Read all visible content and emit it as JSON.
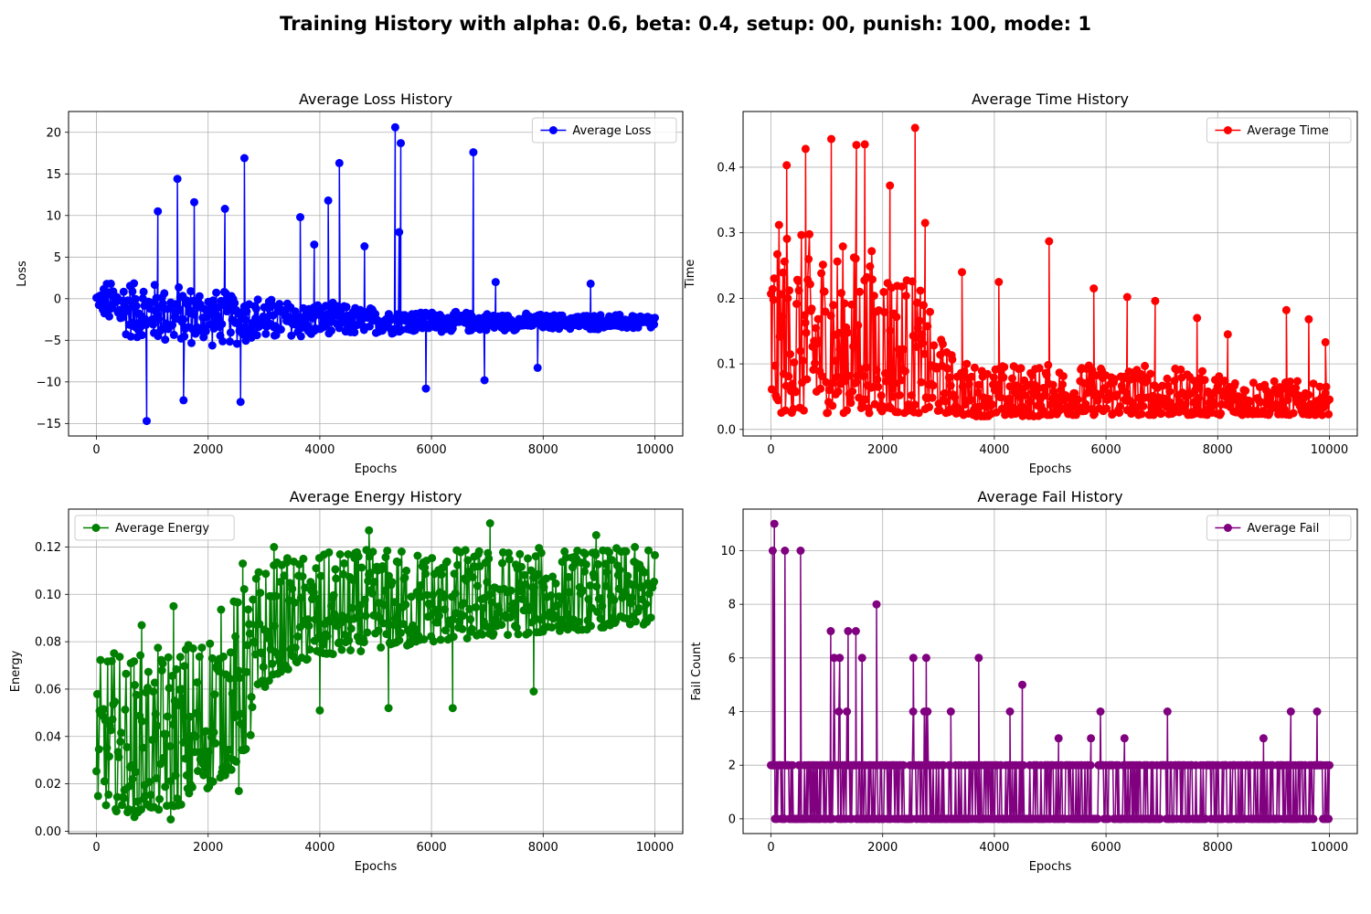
{
  "figure": {
    "suptitle": "Training History with alpha: 0.6, beta: 0.4, setup: 00, punish: 100, mode: 1"
  },
  "chart_data": [
    {
      "type": "line",
      "title": "Average Loss History",
      "xlabel": "Epochs",
      "ylabel": "Loss",
      "xlim": [
        -500,
        10500
      ],
      "ylim": [
        -16.5,
        22.5
      ],
      "xticks": [
        0,
        2000,
        4000,
        6000,
        8000,
        10000
      ],
      "yticks": [
        -15,
        -10,
        -5,
        0,
        5,
        10,
        15,
        20
      ],
      "grid": true,
      "legend_position": "upper-right",
      "series": [
        {
          "name": "Average Loss",
          "color": "#0000ff",
          "marker": "circle",
          "x": [
            0,
            200,
            400,
            600,
            800,
            1000,
            1200,
            1400,
            1600,
            1800,
            2000,
            2200,
            2400,
            2600,
            2800,
            3000,
            3200,
            3400,
            3600,
            3800,
            4000,
            4200,
            4400,
            4600,
            4800,
            5000,
            5200,
            5400,
            5600,
            5800,
            6000,
            6200,
            6400,
            6600,
            6800,
            7000,
            7200,
            7400,
            7600,
            7800,
            8000,
            8200,
            8400,
            8600,
            8800,
            9000,
            9200,
            9400,
            9600,
            9800,
            10000
          ],
          "mean": [
            0,
            -0.5,
            -1.0,
            -1.2,
            -1.5,
            -1.6,
            -1.8,
            -2.0,
            -2.0,
            -2.1,
            -2.2,
            -2.3,
            -2.3,
            -2.4,
            -2.5,
            -2.5,
            -2.5,
            -2.5,
            -2.6,
            -2.6,
            -2.6,
            -2.6,
            -2.6,
            -2.7,
            -2.7,
            -2.7,
            -2.7,
            -2.7,
            -2.7,
            -2.7,
            -2.8,
            -2.8,
            -2.8,
            -2.8,
            -2.8,
            -2.8,
            -2.8,
            -2.8,
            -2.8,
            -2.8,
            -2.8,
            -2.8,
            -2.8,
            -2.8,
            -2.8,
            -2.8,
            -2.8,
            -2.8,
            -2.8,
            -2.8,
            -2.8
          ],
          "spread": [
            0.5,
            3.0,
            4.0,
            4.0,
            4.0,
            4.0,
            4.0,
            4.0,
            4.0,
            4.0,
            3.8,
            3.6,
            3.5,
            3.4,
            3.2,
            3.0,
            2.8,
            2.6,
            2.5,
            2.4,
            2.3,
            2.2,
            2.1,
            2.0,
            1.9,
            1.8,
            1.7,
            1.6,
            1.5,
            1.5,
            1.4,
            1.4,
            1.3,
            1.3,
            1.2,
            1.2,
            1.2,
            1.1,
            1.1,
            1.1,
            1.0,
            1.0,
            1.0,
            1.0,
            1.0,
            1.0,
            1.0,
            1.0,
            1.0,
            1.0,
            1.0
          ],
          "spikes": [
            [
              900,
              -14.7
            ],
            [
              1450,
              14.4
            ],
            [
              1100,
              10.5
            ],
            [
              1750,
              11.6
            ],
            [
              1560,
              -12.2
            ],
            [
              2300,
              10.8
            ],
            [
              2650,
              16.9
            ],
            [
              2580,
              -12.4
            ],
            [
              3650,
              9.8
            ],
            [
              4150,
              11.8
            ],
            [
              4350,
              16.3
            ],
            [
              5350,
              20.6
            ],
            [
              5450,
              18.7
            ],
            [
              5420,
              8.0
            ],
            [
              5900,
              -10.8
            ],
            [
              6750,
              17.6
            ],
            [
              6950,
              -9.8
            ],
            [
              4800,
              6.3
            ],
            [
              3900,
              6.5
            ],
            [
              7150,
              2.0
            ],
            [
              7900,
              -8.3
            ],
            [
              8850,
              1.8
            ]
          ]
        }
      ]
    },
    {
      "type": "line",
      "title": "Average Time History",
      "xlabel": "Epochs",
      "ylabel": "Time",
      "xlim": [
        -500,
        10500
      ],
      "ylim": [
        -0.01,
        0.485
      ],
      "xticks": [
        0,
        2000,
        4000,
        6000,
        8000,
        10000
      ],
      "yticks": [
        0.0,
        0.1,
        0.2,
        0.3,
        0.4
      ],
      "grid": true,
      "legend_position": "upper-right",
      "series": [
        {
          "name": "Average Time",
          "color": "#ff0000",
          "marker": "circle",
          "x": [
            0,
            200,
            400,
            600,
            800,
            1000,
            1200,
            1400,
            1600,
            1800,
            2000,
            2200,
            2400,
            2600,
            2800,
            3000,
            3200,
            3400,
            3600,
            3800,
            4000,
            4200,
            4400,
            4600,
            4800,
            5000,
            5200,
            5400,
            5600,
            5800,
            6000,
            6200,
            6400,
            6600,
            6800,
            7000,
            7200,
            7400,
            7600,
            7800,
            8000,
            8200,
            8400,
            8600,
            8800,
            9000,
            9200,
            9400,
            9600,
            9800,
            10000
          ],
          "low": [
            0.02,
            0.025,
            0.025,
            0.025,
            0.025,
            0.025,
            0.025,
            0.025,
            0.025,
            0.025,
            0.025,
            0.025,
            0.025,
            0.025,
            0.025,
            0.025,
            0.025,
            0.022,
            0.02,
            0.02,
            0.02,
            0.02,
            0.02,
            0.02,
            0.02,
            0.022,
            0.022,
            0.022,
            0.022,
            0.022,
            0.022,
            0.022,
            0.022,
            0.022,
            0.022,
            0.022,
            0.022,
            0.022,
            0.022,
            0.022,
            0.022,
            0.022,
            0.022,
            0.022,
            0.022,
            0.022,
            0.022,
            0.022,
            0.022,
            0.022,
            0.022
          ],
          "high": [
            0.3,
            0.32,
            0.31,
            0.3,
            0.3,
            0.29,
            0.29,
            0.28,
            0.28,
            0.28,
            0.27,
            0.26,
            0.25,
            0.23,
            0.19,
            0.15,
            0.12,
            0.11,
            0.1,
            0.1,
            0.1,
            0.1,
            0.1,
            0.1,
            0.1,
            0.1,
            0.1,
            0.1,
            0.1,
            0.1,
            0.1,
            0.1,
            0.1,
            0.1,
            0.1,
            0.095,
            0.095,
            0.09,
            0.09,
            0.09,
            0.085,
            0.085,
            0.08,
            0.08,
            0.08,
            0.075,
            0.075,
            0.075,
            0.07,
            0.07,
            0.07
          ],
          "spikes": [
            [
              1080,
              0.443
            ],
            [
              1530,
              0.434
            ],
            [
              1680,
              0.435
            ],
            [
              2580,
              0.46
            ],
            [
              620,
              0.428
            ],
            [
              280,
              0.403
            ],
            [
              2130,
              0.372
            ],
            [
              2760,
              0.315
            ],
            [
              3420,
              0.24
            ],
            [
              4080,
              0.225
            ],
            [
              4980,
              0.287
            ],
            [
              5780,
              0.215
            ],
            [
              6380,
              0.202
            ],
            [
              6880,
              0.196
            ],
            [
              7630,
              0.17
            ],
            [
              8180,
              0.145
            ],
            [
              9230,
              0.182
            ],
            [
              9630,
              0.168
            ],
            [
              9930,
              0.133
            ]
          ]
        }
      ]
    },
    {
      "type": "line",
      "title": "Average Energy History",
      "xlabel": "Epochs",
      "ylabel": "Energy",
      "xlim": [
        -500,
        10500
      ],
      "ylim": [
        -0.001,
        0.136
      ],
      "xticks": [
        0,
        2000,
        4000,
        6000,
        8000,
        10000
      ],
      "yticks": [
        0.0,
        0.02,
        0.04,
        0.06,
        0.08,
        0.1,
        0.12
      ],
      "grid": true,
      "legend_position": "upper-left",
      "series": [
        {
          "name": "Average Energy",
          "color": "#008000",
          "marker": "circle",
          "x": [
            0,
            200,
            400,
            600,
            800,
            1000,
            1200,
            1400,
            1600,
            1800,
            2000,
            2200,
            2400,
            2600,
            2800,
            3000,
            3200,
            3400,
            3600,
            3800,
            4000,
            4200,
            4400,
            4600,
            4800,
            5000,
            5200,
            5400,
            5600,
            5800,
            6000,
            6200,
            6400,
            6600,
            6800,
            7000,
            7200,
            7400,
            7600,
            7800,
            8000,
            8200,
            8400,
            8600,
            8800,
            9000,
            9200,
            9400,
            9600,
            9800,
            10000
          ],
          "low": [
            0.012,
            0.01,
            0.008,
            0.008,
            0.008,
            0.008,
            0.008,
            0.01,
            0.012,
            0.015,
            0.018,
            0.022,
            0.025,
            0.03,
            0.04,
            0.06,
            0.066,
            0.068,
            0.07,
            0.072,
            0.072,
            0.074,
            0.075,
            0.076,
            0.076,
            0.077,
            0.078,
            0.078,
            0.078,
            0.08,
            0.08,
            0.08,
            0.081,
            0.081,
            0.082,
            0.082,
            0.082,
            0.083,
            0.083,
            0.083,
            0.084,
            0.084,
            0.085,
            0.085,
            0.085,
            0.086,
            0.086,
            0.086,
            0.087,
            0.087,
            0.088
          ],
          "high": [
            0.07,
            0.078,
            0.076,
            0.076,
            0.076,
            0.077,
            0.078,
            0.08,
            0.082,
            0.086,
            0.09,
            0.094,
            0.1,
            0.103,
            0.11,
            0.115,
            0.115,
            0.116,
            0.117,
            0.117,
            0.118,
            0.118,
            0.119,
            0.119,
            0.119,
            0.119,
            0.12,
            0.12,
            0.12,
            0.12,
            0.12,
            0.12,
            0.12,
            0.12,
            0.12,
            0.12,
            0.12,
            0.12,
            0.12,
            0.12,
            0.12,
            0.12,
            0.12,
            0.12,
            0.12,
            0.12,
            0.12,
            0.12,
            0.12,
            0.12,
            0.12
          ],
          "spikes": [
            [
              7050,
              0.13
            ],
            [
              4880,
              0.127
            ],
            [
              8950,
              0.125
            ],
            [
              4000,
              0.051
            ],
            [
              5230,
              0.052
            ],
            [
              6380,
              0.052
            ],
            [
              7830,
              0.059
            ],
            [
              1330,
              0.005
            ],
            [
              680,
              0.006
            ],
            [
              2550,
              0.017
            ],
            [
              1380,
              0.095
            ],
            [
              2620,
              0.113
            ],
            [
              3180,
              0.12
            ],
            [
              810,
              0.087
            ]
          ]
        }
      ]
    },
    {
      "type": "line",
      "title": "Average Fail History",
      "xlabel": "Epochs",
      "ylabel": "Fail Count",
      "xlim": [
        -500,
        10500
      ],
      "ylim": [
        -0.55,
        11.55
      ],
      "xticks": [
        0,
        2000,
        4000,
        6000,
        8000,
        10000
      ],
      "yticks": [
        0,
        2,
        4,
        6,
        8,
        10
      ],
      "grid": true,
      "legend_position": "upper-right",
      "series": [
        {
          "name": "Average Fail",
          "color": "#800080",
          "marker": "circle",
          "x": [
            0,
            200,
            400,
            600,
            800,
            1000,
            1200,
            1400,
            1600,
            1800,
            2000,
            2200,
            2400,
            2600,
            2800,
            3000,
            3200,
            3400,
            3600,
            3800,
            4000,
            4200,
            4400,
            4600,
            4800,
            5000,
            5200,
            5400,
            5600,
            5800,
            6000,
            6200,
            6400,
            6600,
            6800,
            7000,
            7200,
            7400,
            7600,
            7800,
            8000,
            8200,
            8400,
            8600,
            8800,
            9000,
            9200,
            9400,
            9600,
            9800,
            10000
          ],
          "high": [
            8,
            8,
            8,
            8,
            8,
            8,
            6,
            6,
            6,
            6,
            4,
            4,
            4,
            4,
            4,
            4,
            2,
            2,
            2,
            2,
            2,
            2,
            2,
            2,
            2,
            2,
            2,
            2,
            2,
            2,
            2,
            2,
            2,
            2,
            2,
            2,
            2,
            2,
            2,
            2,
            2,
            2,
            2,
            2,
            2,
            2,
            2,
            2,
            2,
            2,
            2
          ],
          "spikes": [
            [
              60,
              11
            ],
            [
              30,
              10
            ],
            [
              250,
              10
            ],
            [
              530,
              10
            ],
            [
              1070,
              7
            ],
            [
              1380,
              7
            ],
            [
              1520,
              7
            ],
            [
              1890,
              8
            ],
            [
              2550,
              6
            ],
            [
              2780,
              6
            ],
            [
              3220,
              4
            ],
            [
              3720,
              6
            ],
            [
              4500,
              5
            ],
            [
              4280,
              4
            ],
            [
              5150,
              3
            ],
            [
              5730,
              3
            ],
            [
              5900,
              4
            ],
            [
              6330,
              3
            ],
            [
              7100,
              4
            ],
            [
              8820,
              3
            ],
            [
              9310,
              4
            ],
            [
              9780,
              4
            ]
          ]
        }
      ]
    }
  ]
}
